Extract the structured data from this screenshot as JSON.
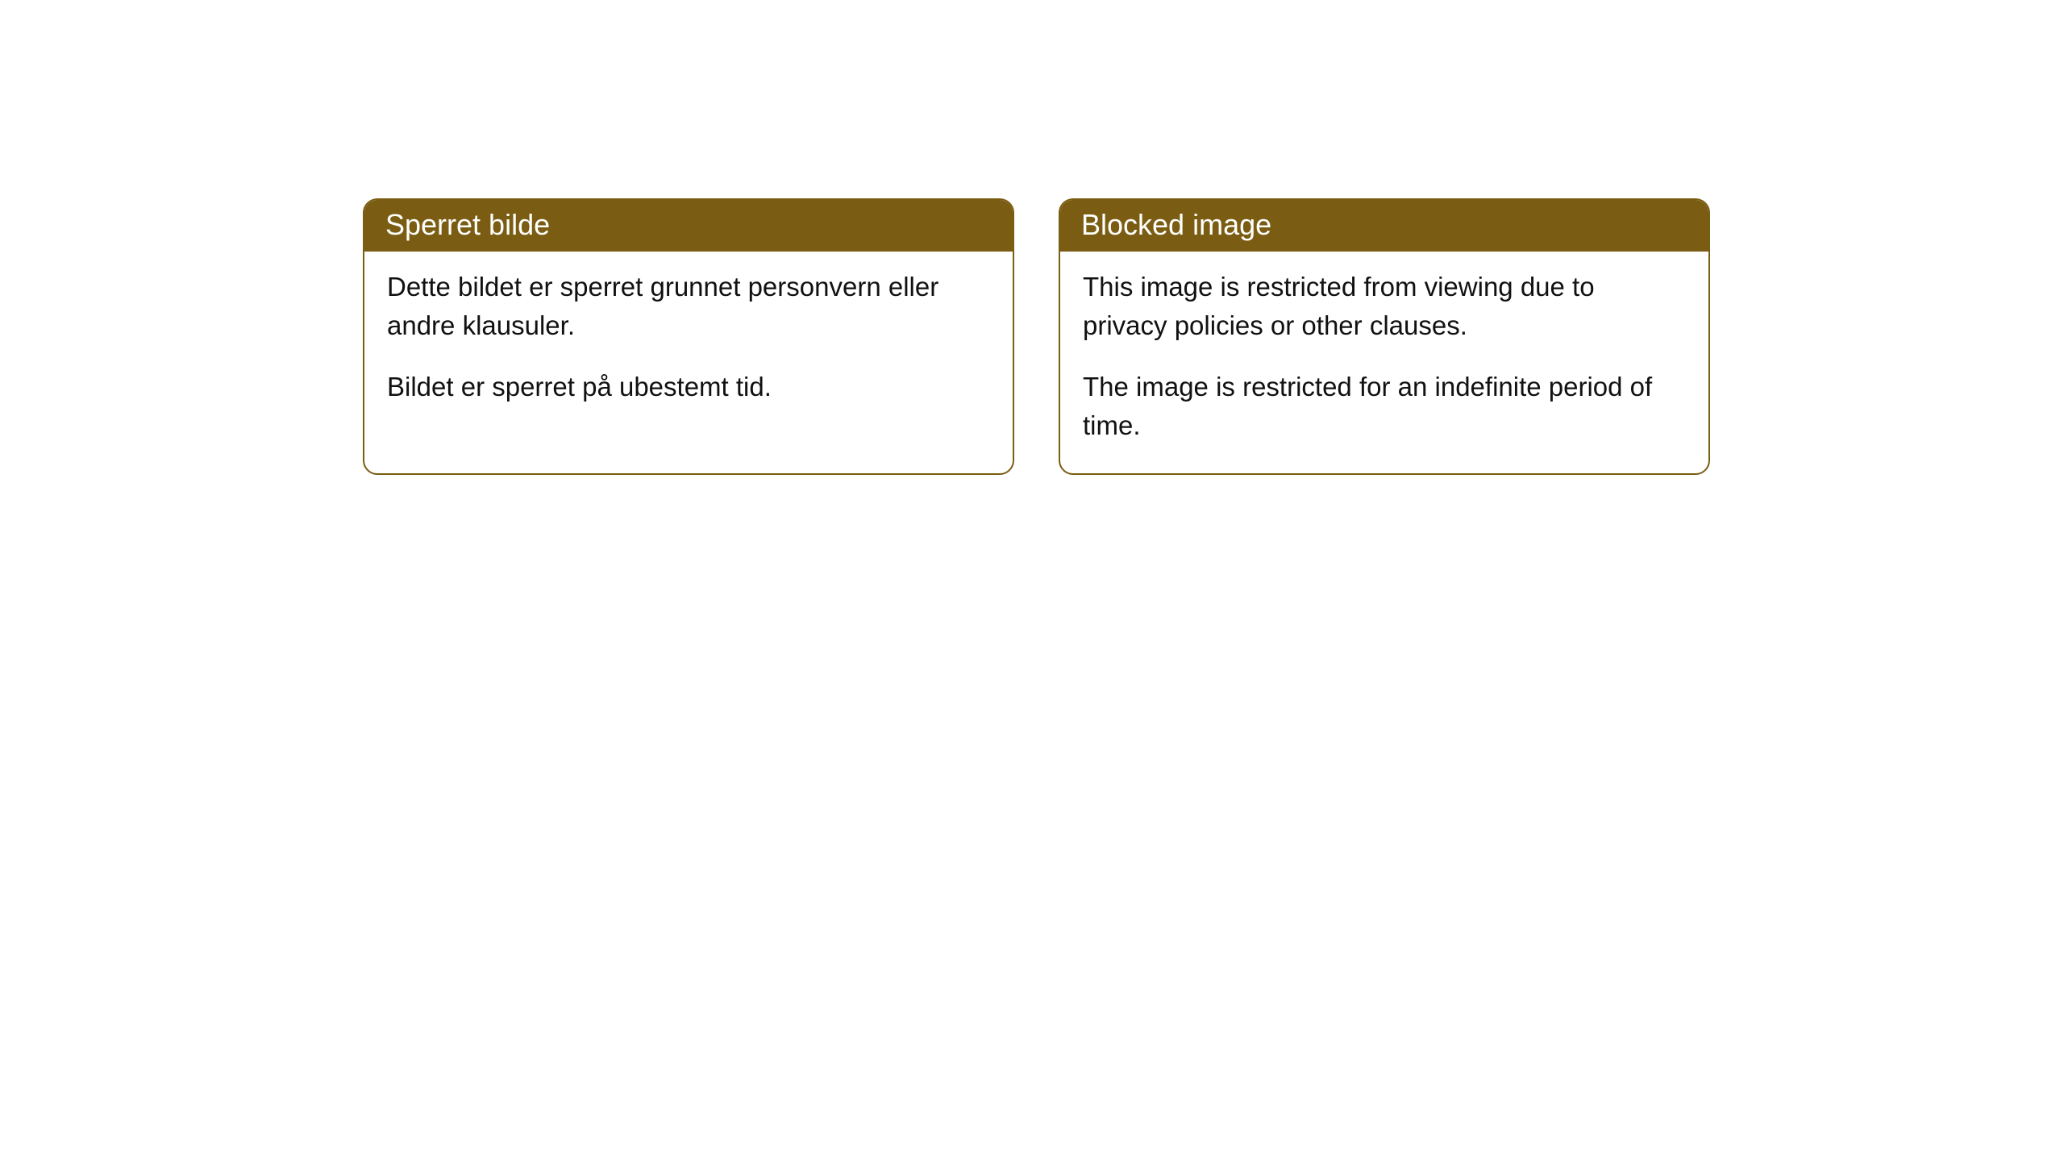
{
  "cards": [
    {
      "title": "Sperret bilde",
      "paragraph1": "Dette bildet er sperret grunnet personvern eller andre klausuler.",
      "paragraph2": "Bildet er sperret på ubestemt tid."
    },
    {
      "title": "Blocked image",
      "paragraph1": "This image is restricted from viewing due to privacy policies or other clauses.",
      "paragraph2": "The image is restricted for an indefinite period of time."
    }
  ],
  "colors": {
    "header_bg": "#7a5d12",
    "header_text": "#ffffff",
    "border": "#7a5d12",
    "body_bg": "#ffffff",
    "body_text": "#111111"
  }
}
